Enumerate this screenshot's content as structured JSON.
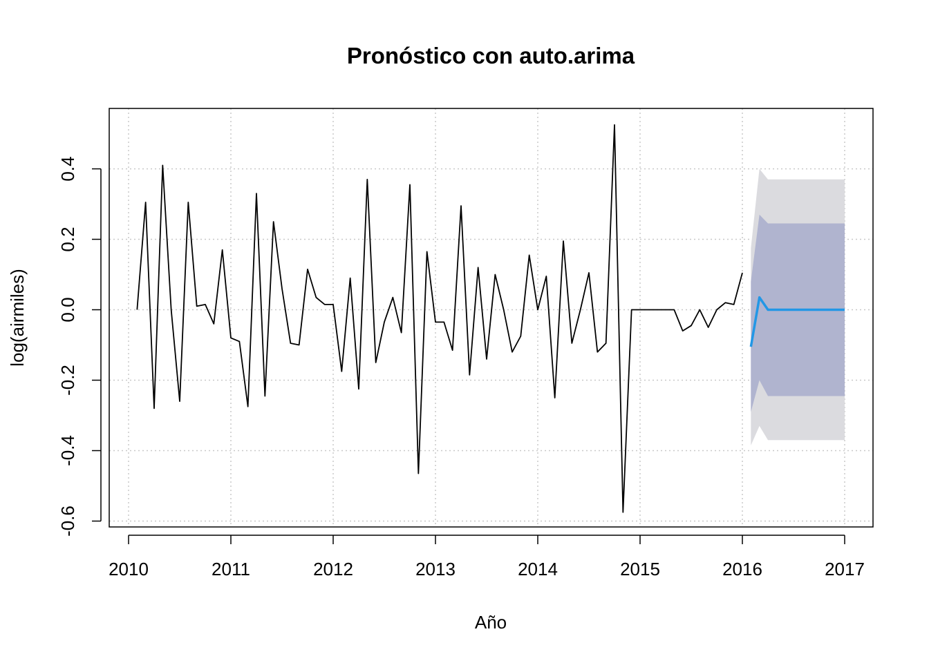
{
  "chart_data": {
    "type": "line",
    "title": "Pronóstico con auto.arima",
    "xlabel": "Año",
    "ylabel": "log(airmiles)",
    "xlim": [
      2010,
      2017
    ],
    "ylim": [
      -0.6,
      0.5
    ],
    "x_ticks": [
      "2010",
      "2011",
      "2012",
      "2013",
      "2014",
      "2015",
      "2016",
      "2017"
    ],
    "y_ticks": [
      "-0.6",
      "-0.4",
      "-0.2",
      "0.0",
      "0.2",
      "0.4"
    ],
    "grid": true,
    "colors": {
      "observed": "#000000",
      "forecast": "#2297E6",
      "band80": "#B0B4CF",
      "band95": "#DBDBDF",
      "grid": "#C8C8C8"
    },
    "observed": {
      "start": 2010.0833,
      "frequency": 12,
      "values": [
        0.0,
        0.305,
        -0.28,
        0.41,
        0.0,
        -0.26,
        0.305,
        0.01,
        0.015,
        -0.04,
        0.17,
        -0.08,
        -0.09,
        -0.275,
        0.33,
        -0.245,
        0.25,
        0.06,
        -0.095,
        -0.1,
        0.115,
        0.035,
        0.015,
        0.015,
        -0.175,
        0.09,
        -0.225,
        0.37,
        -0.15,
        -0.035,
        0.035,
        -0.065,
        0.355,
        -0.465,
        0.165,
        -0.035,
        -0.035,
        -0.115,
        0.295,
        -0.185,
        0.12,
        -0.14,
        0.1,
        0.0,
        -0.12,
        -0.075,
        0.155,
        0.0,
        0.095,
        -0.25,
        0.195,
        -0.095,
        0.0,
        0.105,
        -0.12,
        -0.095,
        0.525,
        -0.575,
        0.0,
        0.0,
        0.0,
        0.0,
        0.0,
        0.0,
        -0.06,
        -0.045,
        0.0,
        -0.05,
        0.0,
        0.02,
        0.015,
        0.105
      ]
    },
    "forecast": {
      "x": [
        2016.0833,
        2016.1667,
        2016.25,
        2016.3333,
        2016.4167,
        2016.5,
        2016.5833,
        2016.6667,
        2016.75,
        2016.8333,
        2016.9167,
        2017.0
      ],
      "mean": [
        -0.105,
        0.035,
        0.0,
        0.0,
        0.0,
        0.0,
        0.0,
        0.0,
        0.0,
        0.0,
        0.0,
        0.0
      ],
      "lo80": [
        -0.29,
        -0.2,
        -0.245,
        -0.245,
        -0.245,
        -0.245,
        -0.245,
        -0.245,
        -0.245,
        -0.245,
        -0.245,
        -0.245
      ],
      "hi80": [
        0.08,
        0.27,
        0.245,
        0.245,
        0.245,
        0.245,
        0.245,
        0.245,
        0.245,
        0.245,
        0.245,
        0.245
      ],
      "lo95": [
        -0.385,
        -0.33,
        -0.37,
        -0.37,
        -0.37,
        -0.37,
        -0.37,
        -0.37,
        -0.37,
        -0.37,
        -0.37,
        -0.37
      ],
      "hi95": [
        0.175,
        0.4,
        0.37,
        0.37,
        0.37,
        0.37,
        0.37,
        0.37,
        0.37,
        0.37,
        0.37,
        0.37
      ]
    }
  }
}
